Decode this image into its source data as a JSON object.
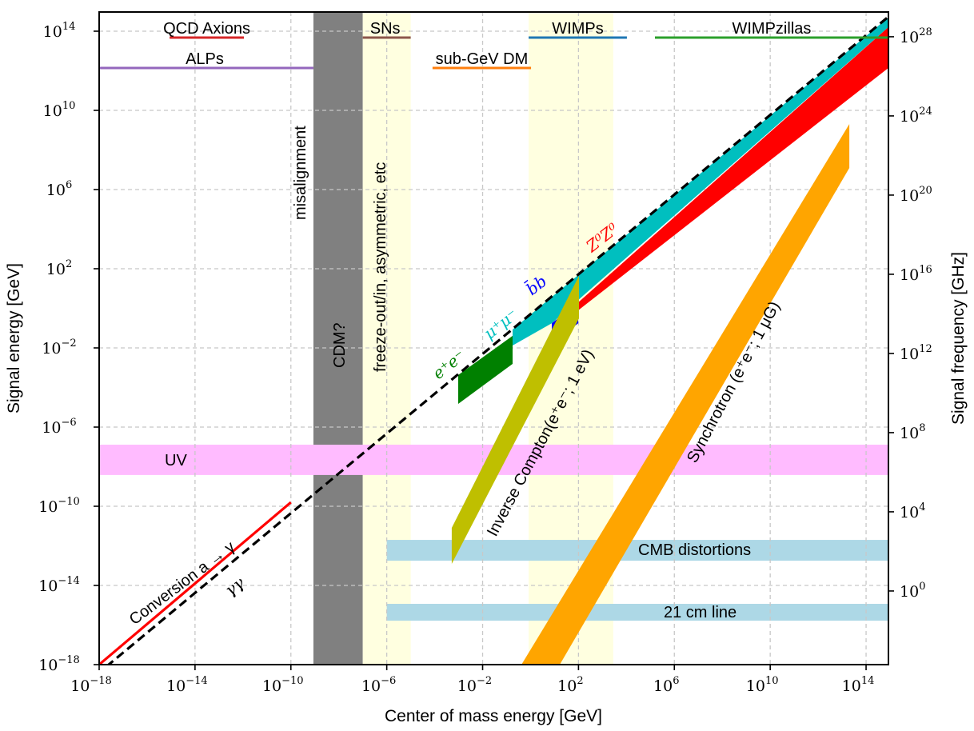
{
  "chart_data": {
    "type": "area",
    "title": "",
    "xlabel": "Center of mass energy [GeV]",
    "ylabel": "Signal energy [GeV]",
    "ylabel_right": "Signal frequency [GHz]",
    "xscale": "log",
    "yscale": "log",
    "xlim_log10": [
      -18,
      15
    ],
    "ylim_log10": [
      -18,
      15
    ],
    "grid": true,
    "x_ticks": [
      {
        "exp": "−18",
        "value": -18
      },
      {
        "exp": "−14",
        "value": -14
      },
      {
        "exp": "−10",
        "value": -10
      },
      {
        "exp": "−6",
        "value": -6
      },
      {
        "exp": "−2",
        "value": -2
      },
      {
        "exp": "2",
        "value": 2
      },
      {
        "exp": "6",
        "value": 6
      },
      {
        "exp": "10",
        "value": 10
      },
      {
        "exp": "14",
        "value": 14
      }
    ],
    "y_ticks": [
      {
        "exp": "14",
        "value": 14
      },
      {
        "exp": "10",
        "value": 10
      },
      {
        "exp": "6",
        "value": 6
      },
      {
        "exp": "2",
        "value": 2
      },
      {
        "exp": "−2",
        "value": -2
      },
      {
        "exp": "−6",
        "value": -6
      },
      {
        "exp": "−10",
        "value": -10
      },
      {
        "exp": "−14",
        "value": -14
      },
      {
        "exp": "−18",
        "value": -18
      }
    ],
    "y_right_ticks": [
      {
        "exp": "28",
        "gev_log10": 13.72
      },
      {
        "exp": "24",
        "gev_log10": 9.72
      },
      {
        "exp": "20",
        "gev_log10": 5.72
      },
      {
        "exp": "16",
        "gev_log10": 1.72
      },
      {
        "exp": "12",
        "gev_log10": -2.28
      },
      {
        "exp": "8",
        "gev_log10": -6.28
      },
      {
        "exp": "4",
        "gev_log10": -10.28
      },
      {
        "exp": "0",
        "gev_log10": -14.28
      }
    ],
    "tick_base": "10",
    "vertical_bands": [
      {
        "name": "cdm",
        "label": "CDM?",
        "x_log10": [
          -9.06,
          -7.0
        ],
        "color": "#808080"
      },
      {
        "name": "freeze-out",
        "label": "freeze-out/in, asymmetric, etc",
        "x_log10": [
          -7.0,
          -5.0
        ],
        "color": "#ffffe0"
      },
      {
        "name": "wimp-band",
        "label": "",
        "x_log10": [
          -0.08,
          3.45
        ],
        "color": "#ffffe0"
      }
    ],
    "horizontal_bands": [
      {
        "name": "uv",
        "label": "UV",
        "y_log10": [
          -8.42,
          -6.89
        ],
        "x_log10": [
          -18,
          15
        ],
        "color": "#ffbbff"
      },
      {
        "name": "cmb",
        "label": "CMB distortions",
        "y_log10": [
          -12.75,
          -11.7
        ],
        "x_log10": [
          -6,
          15
        ],
        "color": "#add8e6"
      },
      {
        "name": "21cm",
        "label": "21 cm line",
        "y_log10": [
          -15.78,
          -14.93
        ],
        "x_log10": [
          -6,
          15
        ],
        "color": "#add8e6"
      }
    ],
    "regions": [
      {
        "name": "mu-mu",
        "label": "μ⁺μ⁻",
        "color": "#00bfbf",
        "points": [
          [
            -0.75,
            -1.07
          ],
          [
            14.93,
            14.69
          ],
          [
            14.93,
            14.2
          ],
          [
            0.89,
            -0.75
          ],
          [
            -0.75,
            -1.88
          ]
        ]
      },
      {
        "name": "e-e",
        "label": "e⁺e⁻",
        "color": "#008000",
        "points": [
          [
            -3.02,
            -3.37
          ],
          [
            -0.75,
            -1.39
          ],
          [
            -0.75,
            -2.81
          ],
          [
            -3.02,
            -4.83
          ]
        ]
      },
      {
        "name": "bb",
        "label": "b̄b",
        "color": "#0000ff",
        "points": [
          [
            0.89,
            -0.75
          ],
          [
            1.99,
            0.3
          ],
          [
            1.99,
            -0.75
          ],
          [
            0.89,
            -1.8
          ]
        ]
      },
      {
        "name": "zz",
        "label": "Z⁰Z⁰",
        "color": "#ff0000",
        "points": [
          [
            1.99,
            0.3
          ],
          [
            14.93,
            14.2
          ],
          [
            14.93,
            12.14
          ],
          [
            1.99,
            -0.1
          ]
        ]
      },
      {
        "name": "inverse-compton",
        "label": "Inverse Compton(e⁺e⁻; 1 eV)",
        "color": "#bfbf00",
        "points": [
          [
            -3.29,
            -11.09
          ],
          [
            2.02,
            1.64
          ],
          [
            2.02,
            -0.51
          ],
          [
            -3.29,
            -12.91
          ]
        ]
      },
      {
        "name": "synchrotron",
        "label": "Synchrotron (e⁺e⁻; 1 μG)",
        "color": "#ffa500",
        "points": [
          [
            -0.38,
            -18
          ],
          [
            13.3,
            9.31
          ],
          [
            13.3,
            7.09
          ],
          [
            1.22,
            -18
          ]
        ]
      }
    ],
    "lines": [
      {
        "name": "gamma-gamma",
        "label": "γγ",
        "color": "#000000",
        "style": "dashed",
        "points": [
          [
            -18,
            -18
          ],
          [
            15,
            15
          ]
        ]
      },
      {
        "name": "conversion",
        "label": "Conversion a → γ",
        "color": "#ff0000",
        "style": "solid",
        "points": [
          [
            -18,
            -18
          ],
          [
            -10,
            -9.8
          ]
        ]
      }
    ],
    "top_ranges": [
      {
        "name": "qcd-axions",
        "label": "QCD Axions",
        "x_log10": [
          -15.06,
          -11.96
        ],
        "row": 1,
        "color": "#d62728"
      },
      {
        "name": "alps",
        "label": "ALPs",
        "x_log10": [
          -18,
          -9.06
        ],
        "row": 2,
        "color": "#9467bd"
      },
      {
        "name": "sns",
        "label": "SNs",
        "x_log10": [
          -7.0,
          -5.0
        ],
        "row": 1,
        "color": "#8c564b"
      },
      {
        "name": "sub-gev-dm",
        "label": "sub-GeV DM",
        "x_log10": [
          -4.09,
          0.02
        ],
        "row": 2,
        "color": "#ff7f0e"
      },
      {
        "name": "wimps",
        "label": "WIMPs",
        "x_log10": [
          -0.08,
          4.02
        ],
        "row": 1,
        "color": "#1f77b4"
      },
      {
        "name": "wimpzillas",
        "label": "WIMPzillas",
        "x_log10": [
          5.19,
          14.93
        ],
        "row": 1,
        "color": "#2ca02c"
      }
    ],
    "annotations": {
      "misalignment": "misalignment",
      "cdm": "CDM?",
      "freeze_out": "freeze-out/in, asymmetric, etc",
      "uv": "UV",
      "cmb": "CMB distortions",
      "line21": "21 cm line",
      "ee": "e⁺e⁻",
      "mumu": "μ⁺μ⁻",
      "bb": "b̄b",
      "zz": "Z⁰Z⁰",
      "ic": "Inverse Compton(e⁺e⁻; 1 eV)",
      "sync": "Synchrotron (e⁺e⁻; 1 μG)",
      "conversion": "Conversion a → γ",
      "gg": "γγ"
    }
  }
}
